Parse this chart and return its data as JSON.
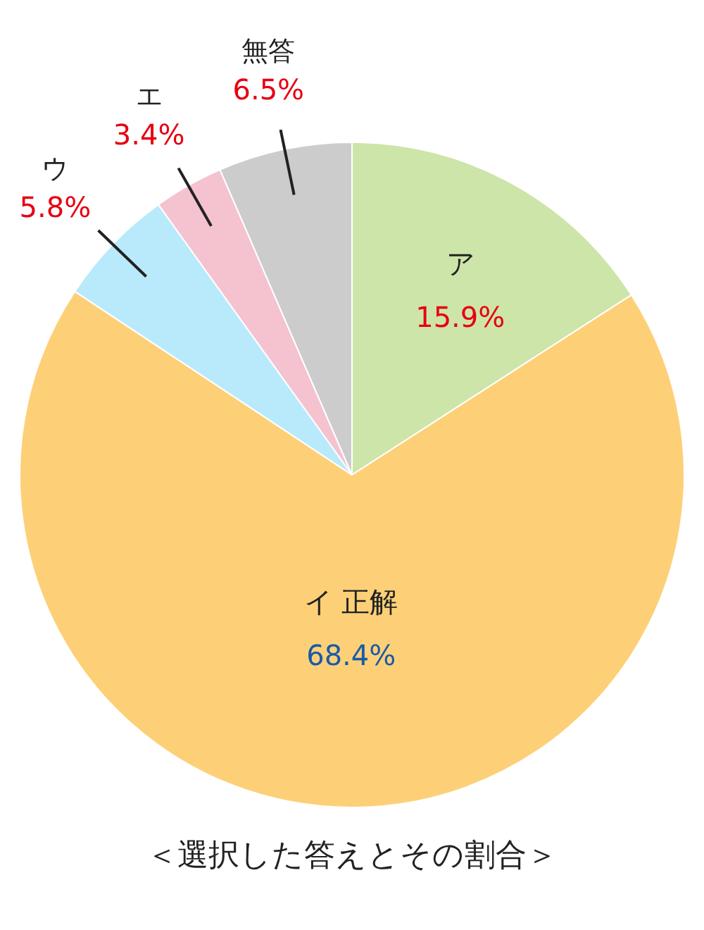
{
  "chart_data": {
    "type": "pie",
    "title": "＜選択した答えとその割合＞",
    "categories": [
      "ア",
      "イ 正解",
      "ウ",
      "エ",
      "無答"
    ],
    "values": [
      15.9,
      68.4,
      5.8,
      3.4,
      6.5
    ],
    "value_labels": [
      "15.9%",
      "68.4%",
      "5.8%",
      "3.4%",
      "6.5%"
    ],
    "colors": [
      "#cde5a8",
      "#fdd078",
      "#b8eafc",
      "#f5c2d0",
      "#cccccc"
    ],
    "legend": false
  }
}
